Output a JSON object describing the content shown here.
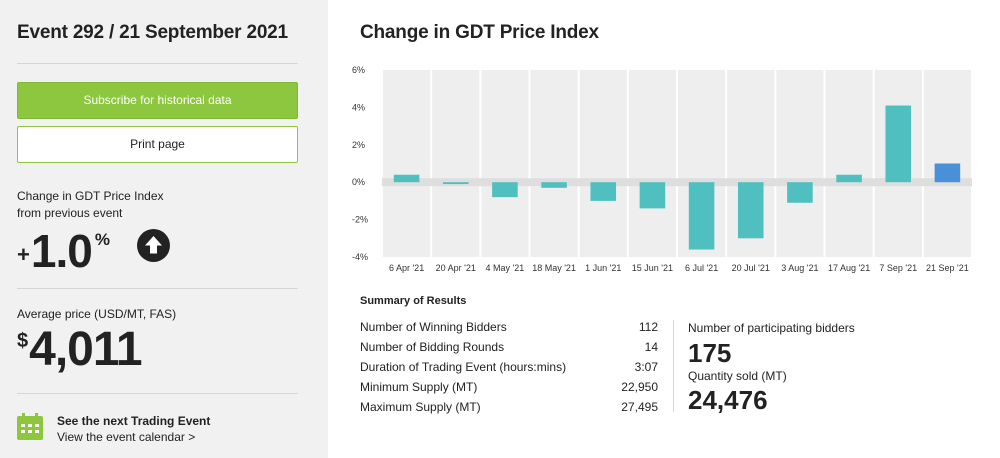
{
  "sidebar": {
    "event_title": "Event 292 / 21 September 2021",
    "subscribe_label": "Subscribe for historical data",
    "print_label": "Print page",
    "change_label_line1": "Change in GDT Price Index",
    "change_label_line2": "from previous event",
    "change_sign": "+",
    "change_value": "1.0",
    "change_unit": "%",
    "change_icon": "arrow-up-circle-icon",
    "avg_label": "Average price (USD/MT, FAS)",
    "avg_currency": "$",
    "avg_value": "4,011",
    "next_title": "See the next Trading Event",
    "next_link": "View the event calendar >",
    "calendar_icon": "calendar-icon"
  },
  "main": {
    "title": "Change in GDT Price Index",
    "summary_title": "Summary of Results",
    "summary_rows": [
      {
        "label": "Number of Winning Bidders",
        "value": "112"
      },
      {
        "label": "Number of Bidding Rounds",
        "value": "14"
      },
      {
        "label": "Duration of Trading Event (hours:mins)",
        "value": "3:07"
      },
      {
        "label": "Minimum Supply (MT)",
        "value": "22,950"
      },
      {
        "label": "Maximum Supply (MT)",
        "value": "27,495"
      }
    ],
    "bidders_label": "Number of participating bidders",
    "bidders_value": "175",
    "qty_label": "Quantity sold (MT)",
    "qty_value": "24,476"
  },
  "colors": {
    "accent_green": "#8dc63f",
    "bar_teal": "#4fbfbf",
    "bar_highlight": "#4a90d9",
    "sidebar_bg": "#f1f1f1"
  },
  "chart_data": {
    "type": "bar",
    "categories": [
      "6 Apr '21",
      "20 Apr '21",
      "4 May '21",
      "18 May '21",
      "1 Jun '21",
      "15 Jun '21",
      "6 Jul '21",
      "20 Jul '21",
      "3 Aug '21",
      "17 Aug '21",
      "7 Sep '21",
      "21 Sep '21"
    ],
    "values": [
      0.4,
      -0.1,
      -0.8,
      -0.3,
      -1.0,
      -1.4,
      -3.6,
      -3.0,
      -1.1,
      0.4,
      4.1,
      1.0
    ],
    "highlight_index": 11,
    "title": "Change in GDT Price Index",
    "xlabel": "",
    "ylabel": "",
    "ylim": [
      -4,
      6
    ],
    "yticks": [
      -4,
      -2,
      0,
      2,
      4,
      6
    ],
    "ytick_labels": [
      "-4%",
      "-2%",
      "0%",
      "2%",
      "4%",
      "6%"
    ],
    "grid": false
  }
}
